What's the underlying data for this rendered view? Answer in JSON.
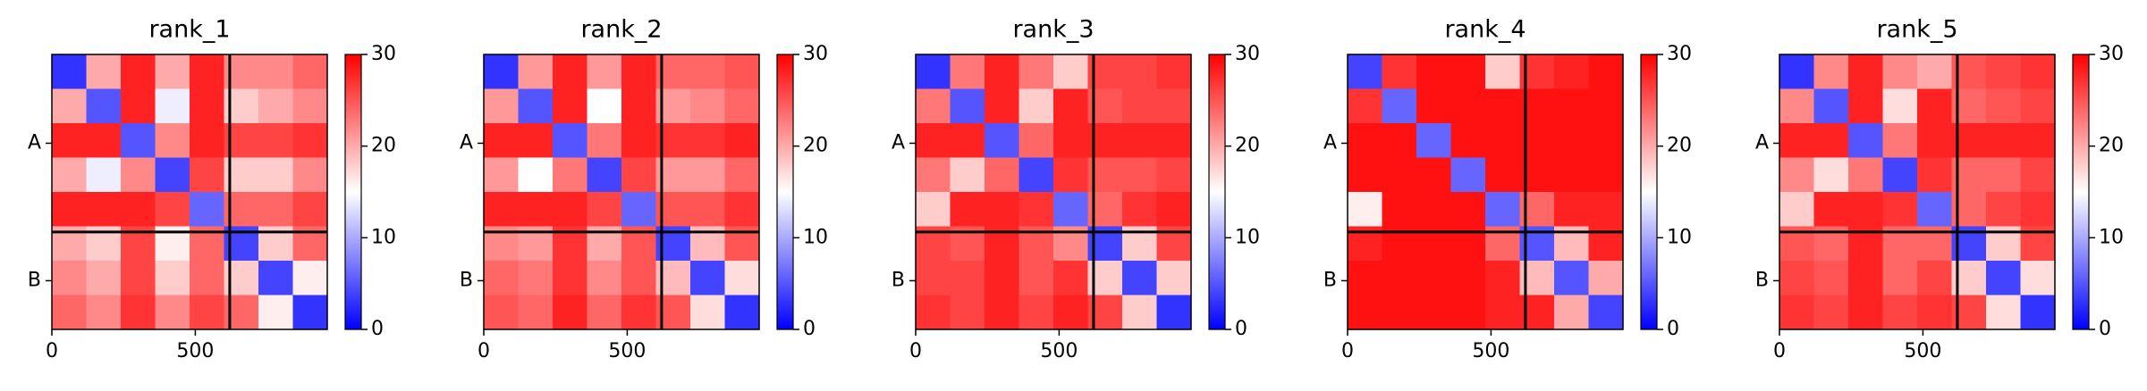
{
  "chart_data": [
    {
      "type": "heatmap",
      "title": "rank_1",
      "xlim": [
        0,
        960
      ],
      "ylim": [
        960,
        0
      ],
      "xticks": [
        0,
        500
      ],
      "yticks": [
        {
          "value": 310,
          "label": "A"
        },
        {
          "value": 790,
          "label": "B"
        }
      ],
      "edges": [
        0,
        120,
        240,
        360,
        480,
        600,
        720,
        840,
        960
      ],
      "chain_breaks": [
        620
      ],
      "colormap": [
        "#0000ff",
        "#ffffff",
        "#ff0000"
      ],
      "clim": [
        0,
        30
      ],
      "cticks": [
        0,
        10,
        20,
        30
      ],
      "z": [
        [
          3,
          20,
          28,
          20,
          28,
          22,
          22,
          24
        ],
        [
          20,
          5,
          28,
          14,
          28,
          18,
          20,
          22
        ],
        [
          28,
          28,
          5,
          22,
          28,
          26,
          26,
          27
        ],
        [
          20,
          14,
          22,
          4,
          26,
          18,
          18,
          22
        ],
        [
          28,
          28,
          28,
          26,
          6,
          24,
          24,
          26
        ],
        [
          20,
          18,
          26,
          16,
          24,
          4,
          18,
          24
        ],
        [
          22,
          20,
          26,
          18,
          24,
          18,
          4,
          16
        ],
        [
          24,
          22,
          27,
          22,
          26,
          24,
          16,
          3
        ]
      ]
    },
    {
      "type": "heatmap",
      "title": "rank_2",
      "xlim": [
        0,
        960
      ],
      "ylim": [
        960,
        0
      ],
      "xticks": [
        0,
        500
      ],
      "yticks": [
        {
          "value": 310,
          "label": "A"
        },
        {
          "value": 790,
          "label": "B"
        }
      ],
      "edges": [
        0,
        120,
        240,
        360,
        480,
        600,
        720,
        840,
        960
      ],
      "chain_breaks": [
        620
      ],
      "colormap": [
        "#0000ff",
        "#ffffff",
        "#ff0000"
      ],
      "clim": [
        0,
        30
      ],
      "cticks": [
        0,
        10,
        20,
        30
      ],
      "z": [
        [
          3,
          21,
          28,
          21,
          28,
          24,
          24,
          25
        ],
        [
          21,
          5,
          28,
          15,
          28,
          21,
          22,
          24
        ],
        [
          28,
          28,
          5,
          23,
          28,
          27,
          27,
          28
        ],
        [
          21,
          15,
          23,
          4,
          26,
          21,
          21,
          24
        ],
        [
          28,
          28,
          28,
          26,
          6,
          25,
          25,
          27
        ],
        [
          22,
          21,
          27,
          20,
          25,
          4,
          19,
          25
        ],
        [
          24,
          23,
          27,
          22,
          25,
          19,
          4,
          17
        ],
        [
          25,
          24,
          28,
          24,
          27,
          25,
          17,
          3
        ]
      ]
    },
    {
      "type": "heatmap",
      "title": "rank_3",
      "xlim": [
        0,
        960
      ],
      "ylim": [
        960,
        0
      ],
      "xticks": [
        0,
        500
      ],
      "yticks": [
        {
          "value": 310,
          "label": "A"
        },
        {
          "value": 790,
          "label": "B"
        }
      ],
      "edges": [
        0,
        120,
        240,
        360,
        480,
        600,
        720,
        840,
        960
      ],
      "chain_breaks": [
        620
      ],
      "colormap": [
        "#0000ff",
        "#ffffff",
        "#ff0000"
      ],
      "clim": [
        0,
        30
      ],
      "cticks": [
        0,
        10,
        20,
        30
      ],
      "z": [
        [
          3,
          23,
          28,
          23,
          18,
          26,
          26,
          27
        ],
        [
          23,
          5,
          28,
          18,
          28,
          25,
          26,
          26
        ],
        [
          28,
          28,
          5,
          24,
          28,
          28,
          28,
          28
        ],
        [
          23,
          18,
          24,
          4,
          27,
          25,
          25,
          26
        ],
        [
          18,
          28,
          28,
          27,
          6,
          24,
          27,
          28
        ],
        [
          26,
          25,
          28,
          25,
          22,
          4,
          18,
          26
        ],
        [
          26,
          26,
          28,
          25,
          27,
          18,
          4,
          18
        ],
        [
          27,
          26,
          28,
          26,
          28,
          26,
          18,
          3
        ]
      ]
    },
    {
      "type": "heatmap",
      "title": "rank_4",
      "xlim": [
        0,
        960
      ],
      "ylim": [
        960,
        0
      ],
      "xticks": [
        0,
        500
      ],
      "yticks": [
        {
          "value": 310,
          "label": "A"
        },
        {
          "value": 790,
          "label": "B"
        }
      ],
      "edges": [
        0,
        120,
        240,
        360,
        480,
        600,
        720,
        840,
        960
      ],
      "chain_breaks": [
        620
      ],
      "colormap": [
        "#0000ff",
        "#ffffff",
        "#ff0000"
      ],
      "clim": [
        0,
        30
      ],
      "cticks": [
        0,
        10,
        20,
        30
      ],
      "z": [
        [
          4,
          27,
          29,
          29,
          18,
          27,
          28,
          29
        ],
        [
          27,
          6,
          29,
          29,
          29,
          29,
          29,
          29
        ],
        [
          29,
          29,
          6,
          29,
          29,
          29,
          29,
          29
        ],
        [
          29,
          29,
          29,
          6,
          29,
          29,
          29,
          29
        ],
        [
          16,
          29,
          29,
          29,
          6,
          24,
          28,
          28
        ],
        [
          28,
          29,
          29,
          29,
          24,
          5,
          19,
          28
        ],
        [
          29,
          29,
          29,
          29,
          28,
          19,
          5,
          20
        ],
        [
          29,
          29,
          29,
          29,
          28,
          28,
          20,
          4
        ]
      ]
    },
    {
      "type": "heatmap",
      "title": "rank_5",
      "xlim": [
        0,
        960
      ],
      "ylim": [
        960,
        0
      ],
      "xticks": [
        0,
        500
      ],
      "yticks": [
        {
          "value": 310,
          "label": "A"
        },
        {
          "value": 790,
          "label": "B"
        }
      ],
      "edges": [
        0,
        120,
        240,
        360,
        480,
        600,
        720,
        840,
        960
      ],
      "chain_breaks": [
        620
      ],
      "colormap": [
        "#0000ff",
        "#ffffff",
        "#ff0000"
      ],
      "clim": [
        0,
        30
      ],
      "cticks": [
        0,
        10,
        20,
        30
      ],
      "z": [
        [
          3,
          22,
          28,
          22,
          20,
          25,
          26,
          27
        ],
        [
          22,
          5,
          28,
          17,
          28,
          24,
          25,
          26
        ],
        [
          28,
          28,
          5,
          23,
          28,
          28,
          28,
          28
        ],
        [
          22,
          17,
          23,
          4,
          27,
          24,
          24,
          26
        ],
        [
          18,
          28,
          28,
          27,
          6,
          24,
          26,
          27
        ],
        [
          25,
          24,
          28,
          24,
          24,
          4,
          18,
          26
        ],
        [
          26,
          25,
          28,
          24,
          26,
          18,
          4,
          17
        ],
        [
          27,
          26,
          28,
          26,
          27,
          26,
          17,
          3
        ]
      ]
    }
  ]
}
